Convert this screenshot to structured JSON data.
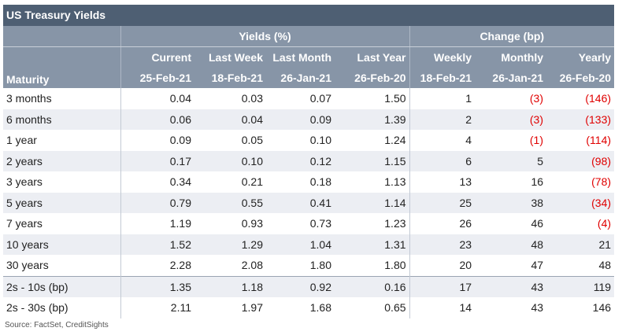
{
  "title": "US Treasury Yields",
  "header": {
    "group_yields": "Yields (%)",
    "group_change": "Change (bp)",
    "maturity": "Maturity",
    "columns": [
      {
        "label": "Current",
        "date": "25-Feb-21"
      },
      {
        "label": "Last Week",
        "date": "18-Feb-21"
      },
      {
        "label": "Last Month",
        "date": "26-Jan-21"
      },
      {
        "label": "Last Year",
        "date": "26-Feb-20"
      },
      {
        "label": "Weekly",
        "date": "18-Feb-21"
      },
      {
        "label": "Monthly",
        "date": "26-Jan-21"
      },
      {
        "label": "Yearly",
        "date": "26-Feb-20"
      }
    ]
  },
  "rows": [
    {
      "maturity": "3 months",
      "values": [
        "0.04",
        "0.03",
        "0.07",
        "1.50",
        "1",
        "(3)",
        "(146)"
      ]
    },
    {
      "maturity": "6 months",
      "values": [
        "0.06",
        "0.04",
        "0.09",
        "1.39",
        "2",
        "(3)",
        "(133)"
      ]
    },
    {
      "maturity": "1 year",
      "values": [
        "0.09",
        "0.05",
        "0.10",
        "1.24",
        "4",
        "(1)",
        "(114)"
      ]
    },
    {
      "maturity": "2 years",
      "values": [
        "0.17",
        "0.10",
        "0.12",
        "1.15",
        "6",
        "5",
        "(98)"
      ]
    },
    {
      "maturity": "3 years",
      "values": [
        "0.34",
        "0.21",
        "0.18",
        "1.13",
        "13",
        "16",
        "(78)"
      ]
    },
    {
      "maturity": "5 years",
      "values": [
        "0.79",
        "0.55",
        "0.41",
        "1.14",
        "25",
        "38",
        "(34)"
      ]
    },
    {
      "maturity": "7 years",
      "values": [
        "1.19",
        "0.93",
        "0.73",
        "1.23",
        "26",
        "46",
        "(4)"
      ]
    },
    {
      "maturity": "10 years",
      "values": [
        "1.52",
        "1.29",
        "1.04",
        "1.31",
        "23",
        "48",
        "21"
      ]
    },
    {
      "maturity": "30 years",
      "values": [
        "2.28",
        "2.08",
        "1.80",
        "1.80",
        "20",
        "47",
        "48"
      ]
    },
    {
      "maturity": "2s - 10s (bp)",
      "values": [
        "1.35",
        "1.18",
        "0.92",
        "0.16",
        "17",
        "43",
        "119"
      ]
    },
    {
      "maturity": "2s - 30s (bp)",
      "values": [
        "2.11",
        "1.97",
        "1.68",
        "0.65",
        "14",
        "43",
        "146"
      ]
    }
  ],
  "source": "Source: FactSet, CreditSights",
  "colors": {
    "title_bg": "#4e5f73",
    "header_bg": "#8795a7",
    "negative": "#e00000"
  }
}
